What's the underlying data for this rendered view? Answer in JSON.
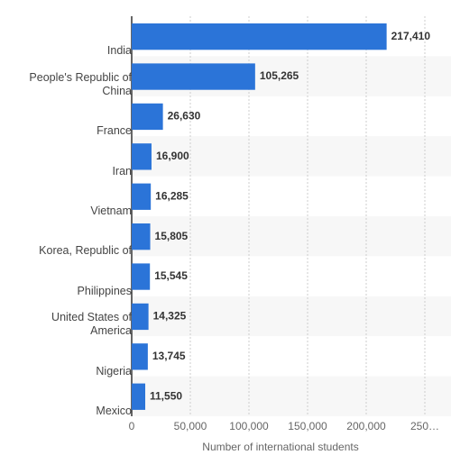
{
  "chart_data": {
    "type": "barh",
    "categories": [
      "India",
      "People's Republic of China",
      "France",
      "Iran",
      "Vietnam",
      "Korea, Republic of",
      "Philippines",
      "United States of America",
      "Nigeria",
      "Mexico"
    ],
    "values": [
      217410,
      105265,
      26630,
      16900,
      16285,
      15805,
      15545,
      14325,
      13745,
      11550
    ],
    "value_labels": [
      "217,410",
      "105,265",
      "26,630",
      "16,900",
      "16,285",
      "15,805",
      "15,545",
      "14,325",
      "13,745",
      "11,550"
    ],
    "color": "#2b74d8",
    "xlim": [
      0,
      250000
    ],
    "xticks": [
      0,
      {
        "value": 50000,
        "label": "50,000"
      },
      {
        "value": 100000,
        "label": "100,000"
      },
      {
        "value": 150000,
        "label": "150,000"
      },
      {
        "value": 200000,
        "label": "200,000"
      },
      {
        "value": 250000,
        "label": "250…"
      }
    ],
    "xlabel": "Number of international students",
    "grid": true
  }
}
